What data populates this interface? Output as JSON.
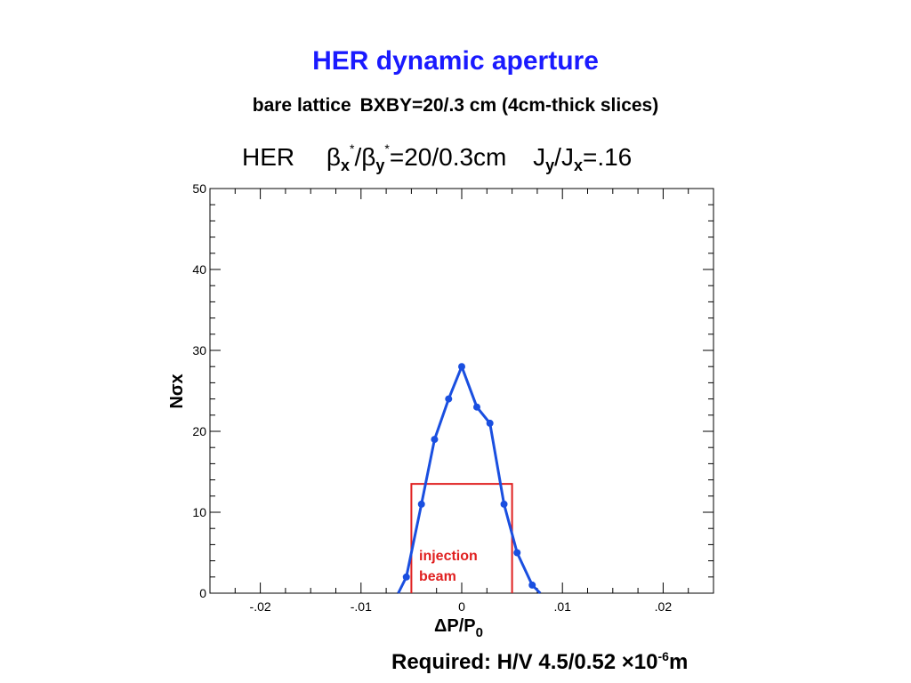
{
  "title": "HER dynamic aperture",
  "subtitle": {
    "part1": "bare lattice",
    "part2": "BXBY=20/.3 cm (4cm-thick slices)"
  },
  "plot_header": {
    "ring": "HER",
    "beta_sym": "β",
    "beta_x_sub": "x",
    "beta_y_sub": "y",
    "star": "*",
    "slash": "/",
    "beta_value": "=20/0.3cm",
    "J_sym": "J",
    "J_y_sub": "y",
    "J_x_sub": "x",
    "J_value": "=.16"
  },
  "chart_data": {
    "type": "line",
    "xlabel_main": "ΔP/P",
    "xlabel_sub": "0",
    "ylabel": "Nσx",
    "xlim": [
      -0.025,
      0.025
    ],
    "ylim": [
      0,
      50
    ],
    "x_ticks": [
      -0.02,
      -0.01,
      0,
      0.01,
      0.02
    ],
    "x_tick_labels": [
      "-.02",
      "-.01",
      "0",
      ".01",
      ".02"
    ],
    "y_ticks": [
      0,
      10,
      20,
      30,
      40,
      50
    ],
    "y_tick_labels": [
      "0",
      "10",
      "20",
      "30",
      "40",
      "50"
    ],
    "series": [
      {
        "color": "#1a4fe0",
        "x": [
          -0.0063,
          -0.0055,
          -0.004,
          -0.0027,
          -0.0013,
          0,
          0.0015,
          0.0028,
          0.0042,
          0.0055,
          0.007,
          0.0078
        ],
        "y": [
          0,
          2,
          11,
          19,
          24,
          28,
          23,
          21,
          11,
          5,
          1,
          0
        ]
      }
    ],
    "injection_box": {
      "color": "#e02020",
      "x0": -0.005,
      "x1": 0.005,
      "y_top": 13.5,
      "label_line1": "injection",
      "label_line2": "beam"
    }
  },
  "footer": {
    "text": "Required: H/V  4.5/0.52 ×10",
    "exponent": "-6",
    "unit": "m"
  }
}
